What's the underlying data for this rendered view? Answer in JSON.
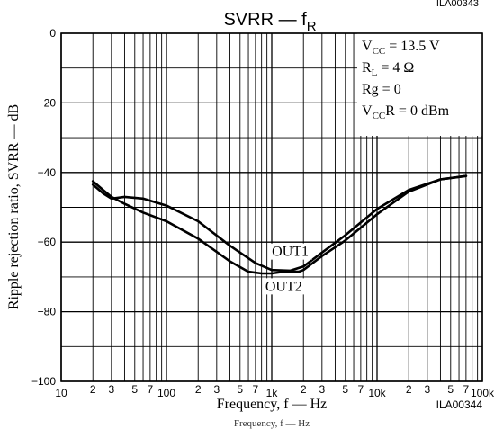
{
  "header_fragment": "ILA00343",
  "footer_fragment": "Frequency, f — Hz",
  "chart_data": {
    "type": "line",
    "title": "SVRR — f",
    "title_sub": "R",
    "xlabel": "Frequency, f — Hz",
    "ylabel": "Ripple rejection ratio, SVRR — dB",
    "figure_code": "ILA00344",
    "x_scale": "log",
    "xlim": [
      10,
      100000
    ],
    "ylim": [
      -100,
      0
    ],
    "grid": true,
    "x_ticks_major": [
      "10",
      "100",
      "1k",
      "10k",
      "100k"
    ],
    "x_ticks_minor": [
      "2",
      "3",
      "5",
      "7"
    ],
    "y_ticks": [
      "0",
      "−20",
      "−40",
      "−60",
      "−80",
      "−100"
    ],
    "conditions": [
      {
        "main": "V",
        "sub": "CC",
        "rest": " = 13.5 V"
      },
      {
        "main": "R",
        "sub": "L",
        "rest": " = 4 Ω"
      },
      {
        "main": "Rg = 0",
        "sub": "",
        "rest": ""
      },
      {
        "main": "V",
        "sub": "CC",
        "rest": "R = 0 dBm"
      }
    ],
    "series": [
      {
        "name": "OUT1",
        "x": [
          20,
          25,
          30,
          40,
          60,
          100,
          200,
          400,
          700,
          1000,
          1500,
          2000,
          3000,
          5000,
          10000,
          20000,
          40000,
          70000
        ],
        "y": [
          -43.5,
          -46,
          -47.5,
          -47,
          -47.5,
          -49.5,
          -54,
          -61,
          -66,
          -68,
          -68.2,
          -67,
          -63,
          -58,
          -50.5,
          -45,
          -42,
          -41
        ]
      },
      {
        "name": "OUT2",
        "x": [
          20,
          25,
          30,
          40,
          60,
          100,
          200,
          400,
          600,
          800,
          1000,
          1300,
          1800,
          2000,
          3000,
          5000,
          10000,
          20000,
          40000,
          70000
        ],
        "y": [
          -42.5,
          -45,
          -47,
          -49,
          -51.5,
          -54,
          -59,
          -65.5,
          -68.5,
          -69,
          -69,
          -68.5,
          -68.5,
          -68,
          -64,
          -59.5,
          -52,
          -45.5,
          -42,
          -41
        ]
      }
    ],
    "annotations": [
      {
        "text": "OUT1",
        "x": 1500,
        "y": -64
      },
      {
        "text": "OUT2",
        "x": 1300,
        "y": -74
      }
    ]
  }
}
